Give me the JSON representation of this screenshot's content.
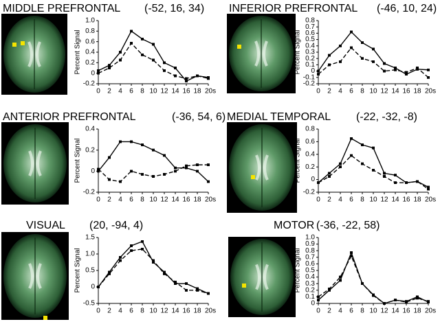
{
  "chart_data": [
    {
      "type": "line",
      "title": "MIDDLE PREFRONTAL",
      "coords": "(-52, 16, 34)",
      "ylabel": "Percent Signal",
      "x": [
        0,
        2,
        4,
        6,
        8,
        10,
        12,
        14,
        16,
        18,
        20
      ],
      "series": [
        {
          "color": "#000000",
          "dashed": false,
          "values": [
            0.05,
            0.15,
            0.4,
            0.8,
            0.65,
            0.55,
            0.2,
            0.1,
            -0.15,
            -0.05,
            -0.08
          ]
        },
        {
          "color": "#000000",
          "dashed": true,
          "values": [
            0.0,
            0.1,
            0.25,
            0.57,
            0.35,
            0.25,
            0.05,
            -0.05,
            -0.1,
            -0.05,
            -0.1
          ]
        }
      ],
      "xlim": [
        0,
        20
      ],
      "ylim": [
        -0.2,
        1.0
      ],
      "xticks": [
        0,
        2,
        4,
        6,
        8,
        10,
        12,
        14,
        16,
        18,
        {
          "value": 20,
          "label": "20s"
        }
      ],
      "yticks": [
        -0.2,
        0,
        0.2,
        0.4,
        0.6,
        0.8,
        {
          "value": 1.0,
          "label": "1.0"
        }
      ]
    },
    {
      "type": "line",
      "title": "INFERIOR PREFRONTAL",
      "coords": "(-46, 10, 24)",
      "ylabel": "Percent Signal",
      "x": [
        0,
        2,
        4,
        6,
        8,
        10,
        12,
        14,
        16,
        18,
        20
      ],
      "series": [
        {
          "color": "#000000",
          "dashed": false,
          "values": [
            0.0,
            0.25,
            0.4,
            0.62,
            0.45,
            0.35,
            0.12,
            0.05,
            -0.05,
            0.03,
            0.02
          ]
        },
        {
          "color": "#000000",
          "dashed": true,
          "values": [
            -0.05,
            0.1,
            0.15,
            0.37,
            0.2,
            0.15,
            0.0,
            0.02,
            -0.02,
            0.05,
            -0.1
          ]
        }
      ],
      "xlim": [
        0,
        20
      ],
      "ylim": [
        -0.2,
        0.8
      ],
      "xticks": [
        0,
        2,
        4,
        6,
        8,
        10,
        12,
        14,
        16,
        18,
        {
          "value": 20,
          "label": "20s"
        }
      ],
      "yticks": [
        -0.2,
        -0.1,
        0,
        0.1,
        0.2,
        0.3,
        0.4,
        0.5,
        0.6,
        0.7,
        0.8
      ]
    },
    {
      "type": "line",
      "title": "ANTERIOR PREFRONTAL",
      "coords": "(-36, 54, 6)",
      "ylabel": "Percent Signal",
      "x": [
        0,
        2,
        4,
        6,
        8,
        10,
        12,
        14,
        16,
        18,
        20
      ],
      "series": [
        {
          "color": "#000000",
          "dashed": false,
          "values": [
            0.0,
            0.13,
            0.28,
            0.28,
            0.25,
            0.2,
            0.15,
            0.03,
            0.03,
            0.0,
            -0.1
          ]
        },
        {
          "color": "#000000",
          "dashed": true,
          "values": [
            0.02,
            -0.08,
            -0.1,
            0.0,
            -0.03,
            -0.05,
            -0.03,
            0.0,
            0.05,
            0.06,
            0.06
          ]
        }
      ],
      "xlim": [
        0,
        20
      ],
      "ylim": [
        -0.2,
        0.4
      ],
      "xticks": [
        0,
        2,
        4,
        6,
        8,
        10,
        12,
        14,
        16,
        18,
        {
          "value": 20,
          "label": "20s"
        }
      ],
      "yticks": [
        -0.2,
        0,
        0.2,
        0.4
      ]
    },
    {
      "type": "line",
      "title": "MEDIAL TEMPORAL",
      "coords": "(-22, -32, -8)",
      "ylabel": "Percent Signal",
      "x": [
        0,
        2,
        4,
        6,
        8,
        10,
        12,
        14,
        16,
        18,
        20
      ],
      "series": [
        {
          "color": "#000000",
          "dashed": false,
          "values": [
            -0.05,
            0.1,
            0.25,
            0.65,
            0.55,
            0.5,
            0.1,
            0.07,
            -0.05,
            -0.03,
            -0.12
          ]
        },
        {
          "color": "#000000",
          "dashed": true,
          "values": [
            -0.05,
            0.05,
            0.2,
            0.38,
            0.25,
            0.15,
            0.05,
            -0.05,
            -0.05,
            -0.03,
            -0.15
          ]
        }
      ],
      "xlim": [
        0,
        20
      ],
      "ylim": [
        -0.2,
        0.8
      ],
      "xticks": [
        0,
        2,
        4,
        6,
        8,
        10,
        12,
        14,
        16,
        18,
        {
          "value": 20,
          "label": "20s"
        }
      ],
      "yticks": [
        -0.2,
        0,
        0.2,
        0.4,
        0.6,
        0.8
      ]
    },
    {
      "type": "line",
      "title": "VISUAL",
      "coords": "(20, -94, 4)",
      "ylabel": "Percent Signal",
      "x": [
        0,
        2,
        4,
        6,
        8,
        10,
        12,
        14,
        16,
        18,
        20
      ],
      "series": [
        {
          "color": "#000000",
          "dashed": false,
          "values": [
            0.0,
            0.45,
            0.9,
            1.25,
            1.38,
            0.75,
            0.45,
            0.1,
            0.1,
            -0.05,
            -0.2
          ]
        },
        {
          "color": "#000000",
          "dashed": true,
          "values": [
            0.0,
            0.4,
            0.8,
            1.1,
            1.15,
            0.8,
            0.4,
            0.15,
            -0.1,
            -0.1,
            -0.2
          ]
        }
      ],
      "xlim": [
        0,
        20
      ],
      "ylim": [
        -0.5,
        1.5
      ],
      "xticks": [
        0,
        2,
        4,
        6,
        8,
        10,
        12,
        14,
        16,
        18,
        {
          "value": 20,
          "label": "20s"
        }
      ],
      "yticks": [
        -0.5,
        0,
        0.5,
        {
          "value": 1.0,
          "label": "1.0"
        },
        1.5
      ]
    },
    {
      "type": "line",
      "title": "MOTOR",
      "coords": "(-36, -22, 58)",
      "ylabel": "Percent Signal",
      "x": [
        0,
        2,
        4,
        6,
        8,
        10,
        12,
        14,
        16,
        18,
        20
      ],
      "series": [
        {
          "color": "#000000",
          "dashed": false,
          "values": [
            0.05,
            0.2,
            0.35,
            0.77,
            0.3,
            0.13,
            0.0,
            0.05,
            0.03,
            0.1,
            0.02
          ]
        },
        {
          "color": "#000000",
          "dashed": true,
          "values": [
            0.1,
            0.22,
            0.4,
            0.72,
            0.3,
            0.12,
            0.0,
            0.05,
            0.02,
            0.08,
            0.03
          ]
        }
      ],
      "xlim": [
        0,
        20
      ],
      "ylim": [
        0,
        1.0
      ],
      "xticks": [
        0,
        2,
        4,
        6,
        8,
        10,
        12,
        14,
        16,
        18,
        {
          "value": 20,
          "label": "20s"
        }
      ],
      "yticks": [
        0,
        0.1,
        0.2,
        0.3,
        0.4,
        0.5,
        0.6,
        0.7,
        0.8,
        0.9,
        {
          "value": 1.0,
          "label": "1.0"
        }
      ]
    }
  ]
}
